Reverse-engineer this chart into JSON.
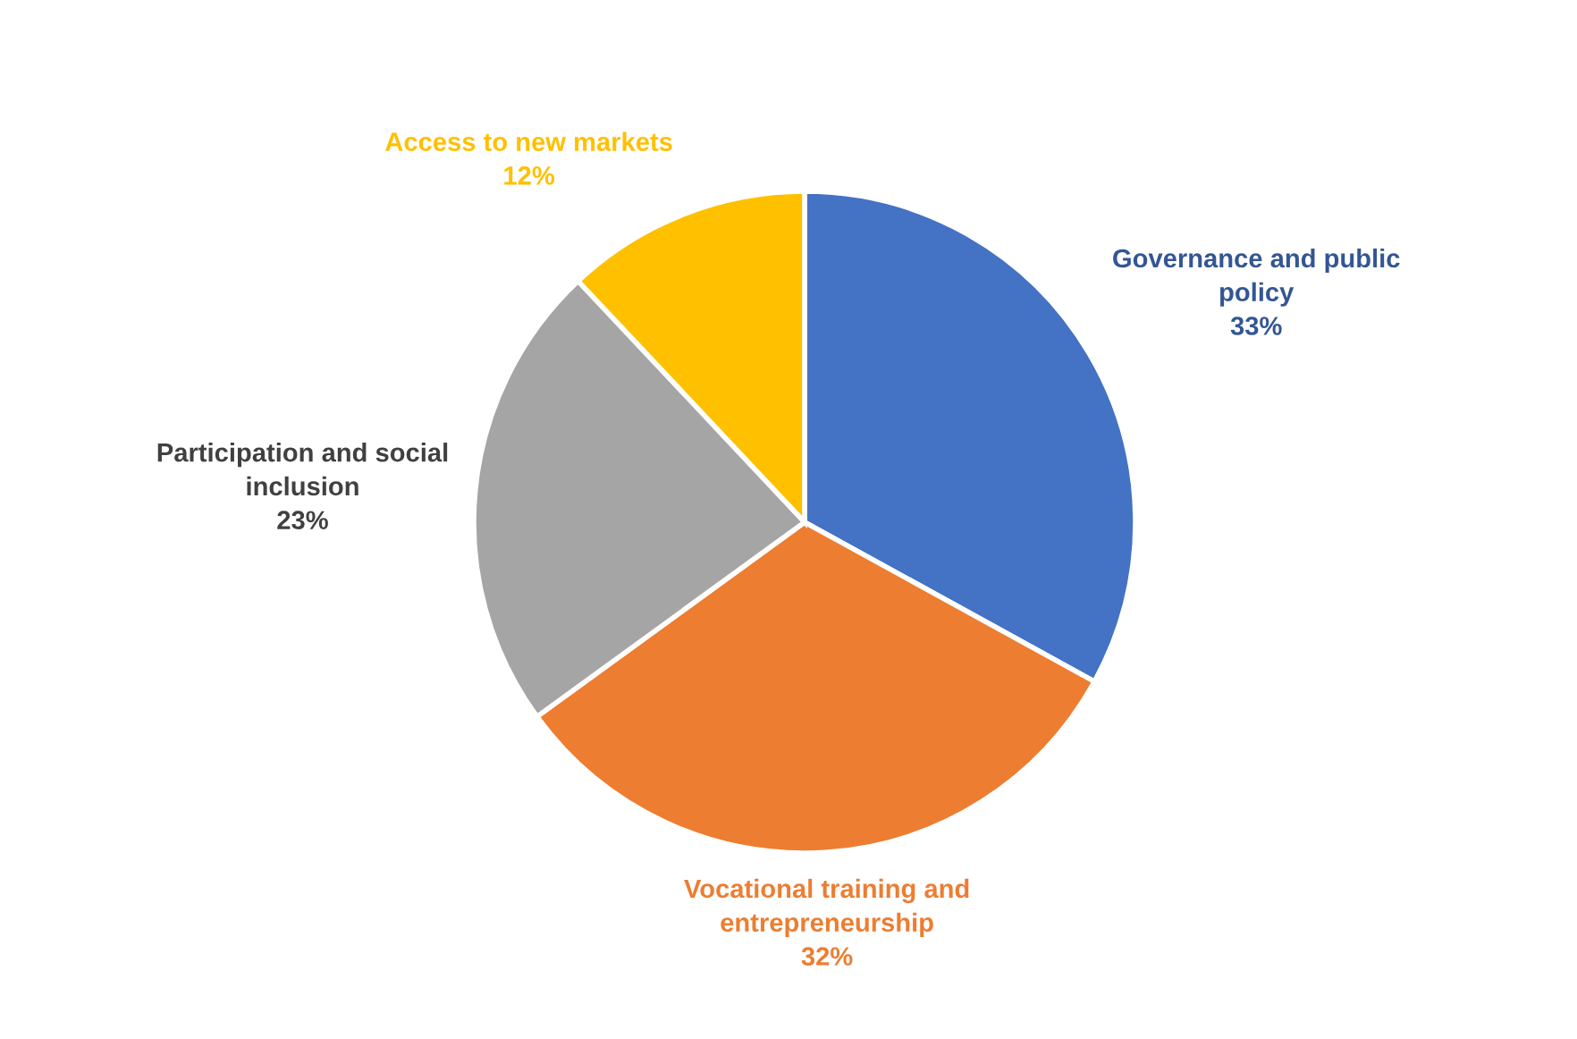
{
  "chart_data": {
    "type": "pie",
    "categories": [
      "Governance and public\npolicy",
      "Vocational training and\nentrepreneurship",
      "Participation and social\ninclusion",
      "Access to new markets"
    ],
    "values": [
      33,
      32,
      23,
      12
    ],
    "colors": [
      "#4472c4",
      "#ed7d31",
      "#a5a5a5",
      "#ffc000"
    ],
    "value_labels": [
      "33%",
      "32%",
      "23%",
      "12%"
    ],
    "legend": false
  }
}
